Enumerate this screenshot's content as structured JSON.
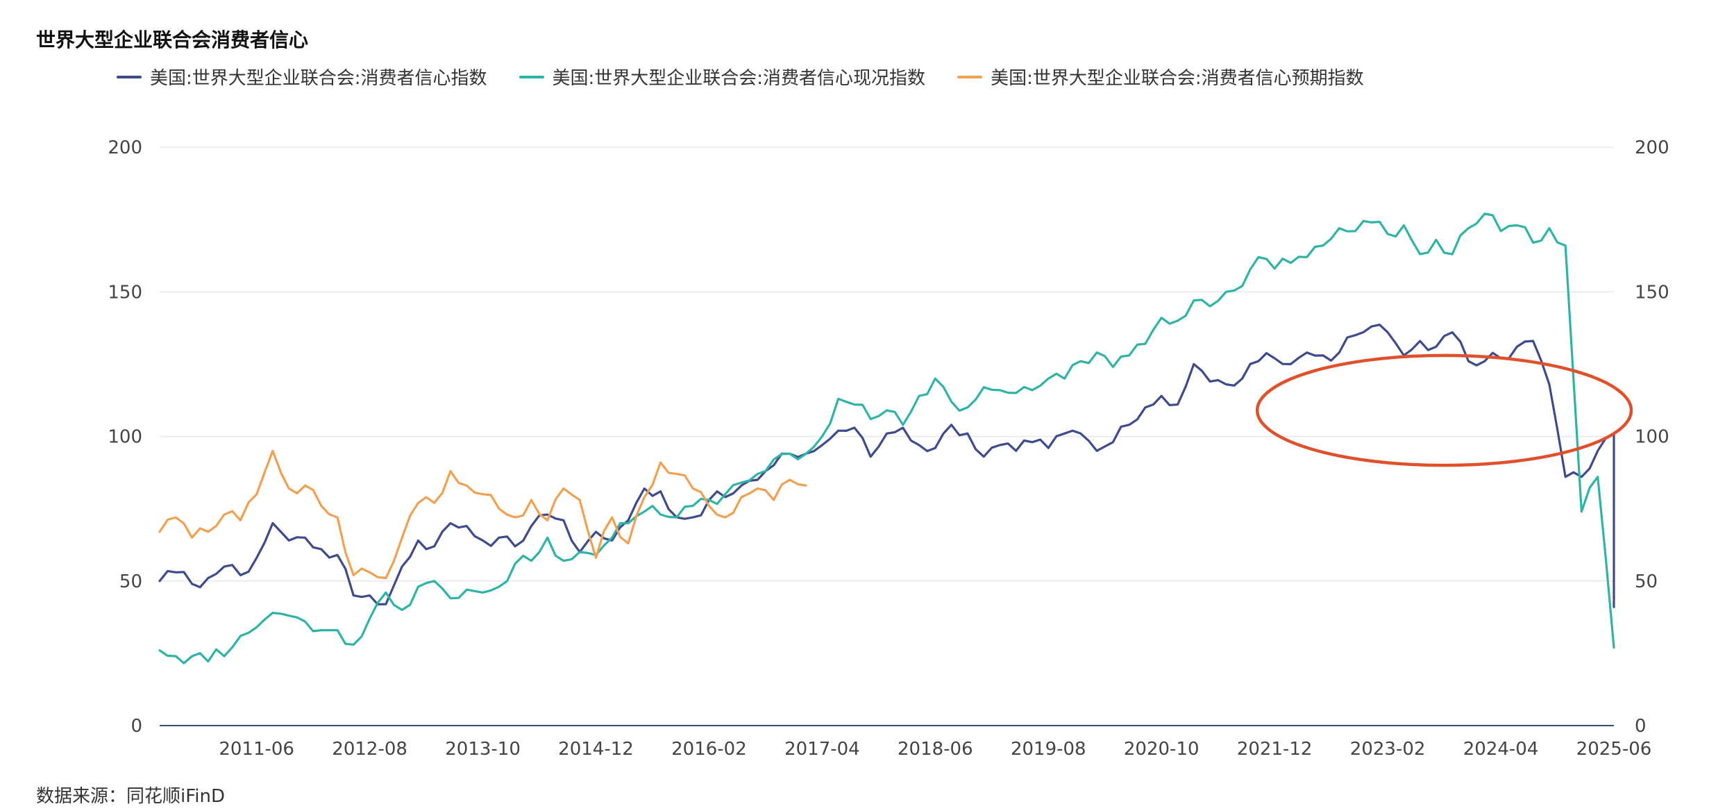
{
  "chart_data": {
    "type": "line",
    "title": "世界大型企业联合会消费者信心",
    "source": "数据来源：同花顺iFinD",
    "x_tick_labels": [
      "2011-06",
      "2012-08",
      "2013-10",
      "2014-12",
      "2016-02",
      "2017-04",
      "2018-06",
      "2019-08",
      "2020-10",
      "2021-12",
      "2023-02",
      "2024-04",
      "2025-06"
    ],
    "x_range": [
      "2010-06",
      "2025-06"
    ],
    "y_left": {
      "range": [
        0,
        200
      ],
      "ticks": [
        0,
        50,
        100,
        150,
        200
      ]
    },
    "y_right": {
      "range": [
        0,
        200
      ],
      "ticks": [
        0,
        50,
        100,
        150,
        200
      ]
    },
    "grid": true,
    "legend_position": "top-left",
    "annotation": {
      "type": "ellipse",
      "color": "#e0502a",
      "description_date_range": [
        "2021-12",
        "2025-06"
      ]
    },
    "series": [
      {
        "name": "美国:世界大型企业联合会:消费者信心指数",
        "color": "#3d4a8c",
        "anchors": [
          [
            "2010-06",
            50
          ],
          [
            "2010-08",
            53
          ],
          [
            "2010-10",
            49
          ],
          [
            "2010-12",
            51
          ],
          [
            "2011-02",
            55
          ],
          [
            "2011-04",
            52
          ],
          [
            "2011-06",
            58
          ],
          [
            "2011-08",
            70
          ],
          [
            "2011-10",
            64
          ],
          [
            "2011-12",
            65
          ],
          [
            "2012-02",
            61
          ],
          [
            "2012-04",
            59
          ],
          [
            "2012-06",
            45
          ],
          [
            "2012-08",
            45
          ],
          [
            "2012-10",
            42
          ],
          [
            "2012-12",
            55
          ],
          [
            "2013-02",
            64
          ],
          [
            "2013-04",
            62
          ],
          [
            "2013-06",
            70
          ],
          [
            "2013-08",
            69
          ],
          [
            "2013-10",
            64
          ],
          [
            "2013-12",
            65
          ],
          [
            "2014-02",
            62
          ],
          [
            "2014-04",
            69
          ],
          [
            "2014-06",
            73
          ],
          [
            "2014-08",
            71
          ],
          [
            "2014-10",
            60
          ],
          [
            "2014-12",
            67
          ],
          [
            "2015-02",
            64
          ],
          [
            "2015-04",
            71
          ],
          [
            "2015-06",
            82
          ],
          [
            "2015-08",
            81
          ],
          [
            "2015-10",
            72
          ],
          [
            "2015-12",
            72
          ],
          [
            "2016-02",
            78
          ],
          [
            "2016-04",
            79
          ],
          [
            "2016-06",
            83
          ],
          [
            "2016-08",
            85
          ],
          [
            "2016-10",
            90
          ],
          [
            "2016-12",
            94
          ],
          [
            "2017-02",
            94
          ],
          [
            "2017-04",
            97
          ],
          [
            "2017-06",
            102
          ],
          [
            "2017-08",
            103
          ],
          [
            "2017-10",
            93
          ],
          [
            "2017-12",
            101
          ],
          [
            "2018-02",
            103
          ],
          [
            "2018-04",
            97
          ],
          [
            "2018-06",
            96
          ],
          [
            "2018-08",
            104
          ],
          [
            "2018-10",
            101
          ],
          [
            "2018-12",
            93
          ],
          [
            "2019-02",
            97
          ],
          [
            "2019-04",
            95
          ],
          [
            "2019-06",
            98
          ],
          [
            "2019-08",
            96
          ],
          [
            "2019-10",
            101
          ],
          [
            "2019-12",
            101
          ],
          [
            "2020-02",
            95
          ],
          [
            "2020-04",
            98
          ],
          [
            "2020-06",
            104
          ],
          [
            "2020-08",
            110
          ],
          [
            "2020-10",
            114
          ],
          [
            "2020-12",
            111
          ],
          [
            "2021-02",
            125
          ],
          [
            "2021-04",
            119
          ],
          [
            "2021-06",
            118
          ],
          [
            "2021-08",
            120
          ],
          [
            "2021-10",
            126
          ],
          [
            "2021-12",
            127
          ],
          [
            "2022-02",
            125
          ],
          [
            "2022-04",
            129
          ],
          [
            "2022-06",
            128
          ],
          [
            "2022-08",
            129
          ],
          [
            "2022-10",
            135
          ],
          [
            "2022-12",
            138
          ],
          [
            "2023-02",
            136
          ],
          [
            "2023-04",
            128
          ],
          [
            "2023-06",
            133
          ],
          [
            "2023-08",
            131
          ],
          [
            "2023-10",
            136
          ],
          [
            "2023-12",
            126
          ],
          [
            "2024-02",
            126
          ],
          [
            "2024-04",
            127
          ],
          [
            "2024-06",
            131
          ],
          [
            "2024-08",
            133
          ],
          [
            "2024-10",
            118
          ],
          [
            "2024-12",
            86
          ],
          [
            "2025-02",
            86
          ],
          [
            "2025-04",
            95
          ],
          [
            "2025-06",
            101
          ],
          [
            "2025-06",
            41
          ]
        ]
      },
      {
        "name": "美国:世界大型企业联合会:消费者信心现况指数",
        "color": "#2fb3a5",
        "anchors": [
          [
            "2010-06",
            26
          ],
          [
            "2010-08",
            24
          ],
          [
            "2010-10",
            24
          ],
          [
            "2011-02",
            24
          ],
          [
            "2011-04",
            31
          ],
          [
            "2011-06",
            34
          ],
          [
            "2011-08",
            39
          ],
          [
            "2011-10",
            38
          ],
          [
            "2011-12",
            36
          ],
          [
            "2012-02",
            33
          ],
          [
            "2012-04",
            33
          ],
          [
            "2012-06",
            28
          ],
          [
            "2012-08",
            37
          ],
          [
            "2012-10",
            46
          ],
          [
            "2012-12",
            40
          ],
          [
            "2013-02",
            48
          ],
          [
            "2013-04",
            50
          ],
          [
            "2013-06",
            44
          ],
          [
            "2013-08",
            47
          ],
          [
            "2013-10",
            46
          ],
          [
            "2013-12",
            48
          ],
          [
            "2014-02",
            56
          ],
          [
            "2014-04",
            57
          ],
          [
            "2014-06",
            65
          ],
          [
            "2014-08",
            57
          ],
          [
            "2014-10",
            60
          ],
          [
            "2014-12",
            59
          ],
          [
            "2015-02",
            65
          ],
          [
            "2015-04",
            70
          ],
          [
            "2015-06",
            74
          ],
          [
            "2015-08",
            73
          ],
          [
            "2015-10",
            72
          ],
          [
            "2015-12",
            76
          ],
          [
            "2016-02",
            78
          ],
          [
            "2016-04",
            80
          ],
          [
            "2016-06",
            84
          ],
          [
            "2016-08",
            87
          ],
          [
            "2016-10",
            92
          ],
          [
            "2016-12",
            94
          ],
          [
            "2017-02",
            94
          ],
          [
            "2017-04",
            100
          ],
          [
            "2017-06",
            113
          ],
          [
            "2017-08",
            111
          ],
          [
            "2017-10",
            106
          ],
          [
            "2017-12",
            109
          ],
          [
            "2018-02",
            104
          ],
          [
            "2018-04",
            114
          ],
          [
            "2018-06",
            120
          ],
          [
            "2018-08",
            112
          ],
          [
            "2018-10",
            110
          ],
          [
            "2018-12",
            117
          ],
          [
            "2019-02",
            116
          ],
          [
            "2019-04",
            115
          ],
          [
            "2019-06",
            116
          ],
          [
            "2019-08",
            120
          ],
          [
            "2019-10",
            120
          ],
          [
            "2019-12",
            126
          ],
          [
            "2020-02",
            129
          ],
          [
            "2020-04",
            124
          ],
          [
            "2020-06",
            128
          ],
          [
            "2020-08",
            132
          ],
          [
            "2020-10",
            141
          ],
          [
            "2020-12",
            140
          ],
          [
            "2021-02",
            147
          ],
          [
            "2021-04",
            145
          ],
          [
            "2021-06",
            150
          ],
          [
            "2021-08",
            152
          ],
          [
            "2021-10",
            162
          ],
          [
            "2021-12",
            158
          ],
          [
            "2022-02",
            160
          ],
          [
            "2022-04",
            162
          ],
          [
            "2022-06",
            166
          ],
          [
            "2022-08",
            172
          ],
          [
            "2022-10",
            171
          ],
          [
            "2022-12",
            174
          ],
          [
            "2023-02",
            170
          ],
          [
            "2023-04",
            173
          ],
          [
            "2023-06",
            163
          ],
          [
            "2023-08",
            168
          ],
          [
            "2023-10",
            163
          ],
          [
            "2023-12",
            172
          ],
          [
            "2024-02",
            177
          ],
          [
            "2024-04",
            171
          ],
          [
            "2024-06",
            173
          ],
          [
            "2024-08",
            167
          ],
          [
            "2024-10",
            172
          ],
          [
            "2024-12",
            166
          ],
          [
            "2025-02",
            74
          ],
          [
            "2025-04",
            86
          ],
          [
            "2025-06",
            27
          ]
        ]
      },
      {
        "name": "美国:世界大型企业联合会:消费者信心预期指数",
        "color": "#f0a050",
        "anchors": [
          [
            "2010-06",
            67
          ],
          [
            "2010-08",
            72
          ],
          [
            "2010-10",
            65
          ],
          [
            "2010-12",
            67
          ],
          [
            "2011-02",
            73
          ],
          [
            "2011-04",
            71
          ],
          [
            "2011-06",
            80
          ],
          [
            "2011-08",
            95
          ],
          [
            "2011-10",
            82
          ],
          [
            "2011-12",
            83
          ],
          [
            "2012-02",
            76
          ],
          [
            "2012-04",
            72
          ],
          [
            "2012-06",
            52
          ],
          [
            "2012-08",
            53
          ],
          [
            "2012-10",
            51
          ],
          [
            "2012-12",
            65
          ],
          [
            "2013-02",
            77
          ],
          [
            "2013-04",
            77
          ],
          [
            "2013-06",
            88
          ],
          [
            "2013-08",
            83
          ],
          [
            "2013-10",
            80
          ],
          [
            "2013-12",
            75
          ],
          [
            "2014-02",
            72
          ],
          [
            "2014-04",
            78
          ],
          [
            "2014-06",
            71
          ],
          [
            "2014-08",
            82
          ],
          [
            "2014-10",
            78
          ],
          [
            "2014-12",
            58
          ],
          [
            "2015-02",
            72
          ],
          [
            "2015-04",
            63
          ],
          [
            "2015-06",
            79
          ],
          [
            "2015-08",
            91
          ],
          [
            "2015-10",
            87
          ],
          [
            "2015-12",
            82
          ],
          [
            "2016-02",
            76
          ],
          [
            "2016-04",
            72
          ],
          [
            "2016-06",
            79
          ],
          [
            "2016-08",
            82
          ],
          [
            "2016-10",
            78
          ],
          [
            "2016-12",
            85
          ],
          [
            "2017-02",
            83
          ]
        ]
      }
    ]
  }
}
